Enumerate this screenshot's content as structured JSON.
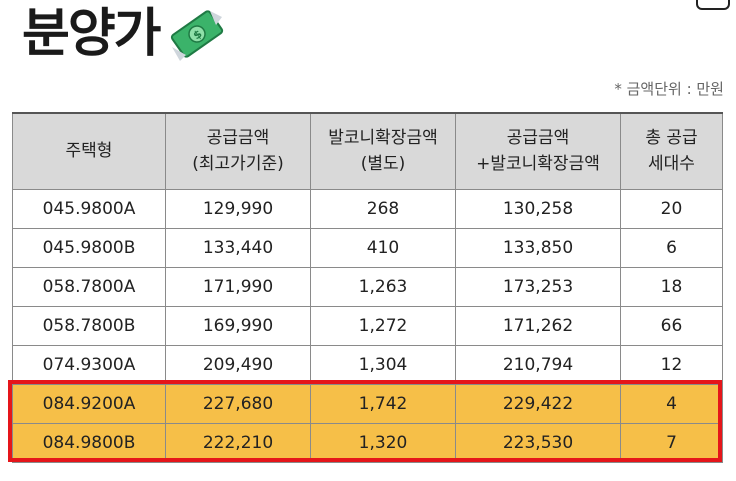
{
  "title": "분양가",
  "unit_note": "* 금액단위 : 만원",
  "table": {
    "headers": [
      {
        "line1": "주택형",
        "line2": ""
      },
      {
        "line1": "공급금액",
        "line2": "(최고가기준)"
      },
      {
        "line1": "발코니확장금액",
        "line2": "(별도)"
      },
      {
        "line1": "공급금액",
        "line2": "+발코니확장금액"
      },
      {
        "line1": "총 공급",
        "line2": "세대수"
      }
    ],
    "rows": [
      [
        "045.9800A",
        "129,990",
        "268",
        "130,258",
        "20"
      ],
      [
        "045.9800B",
        "133,440",
        "410",
        "133,850",
        "6"
      ],
      [
        "058.7800A",
        "171,990",
        "1,263",
        "173,253",
        "18"
      ],
      [
        "058.7800B",
        "169,990",
        "1,272",
        "171,262",
        "66"
      ],
      [
        "074.9300A",
        "209,490",
        "1,304",
        "210,794",
        "12"
      ],
      [
        "084.9200A",
        "227,680",
        "1,742",
        "229,422",
        "4"
      ],
      [
        "084.9800B",
        "222,210",
        "1,320",
        "223,530",
        "7"
      ]
    ],
    "highlighted_rows": [
      5,
      6
    ]
  },
  "colors": {
    "header_bg": "#d9d9d9",
    "highlight_bg": "#f6bf48",
    "highlight_border": "#e5151a"
  }
}
